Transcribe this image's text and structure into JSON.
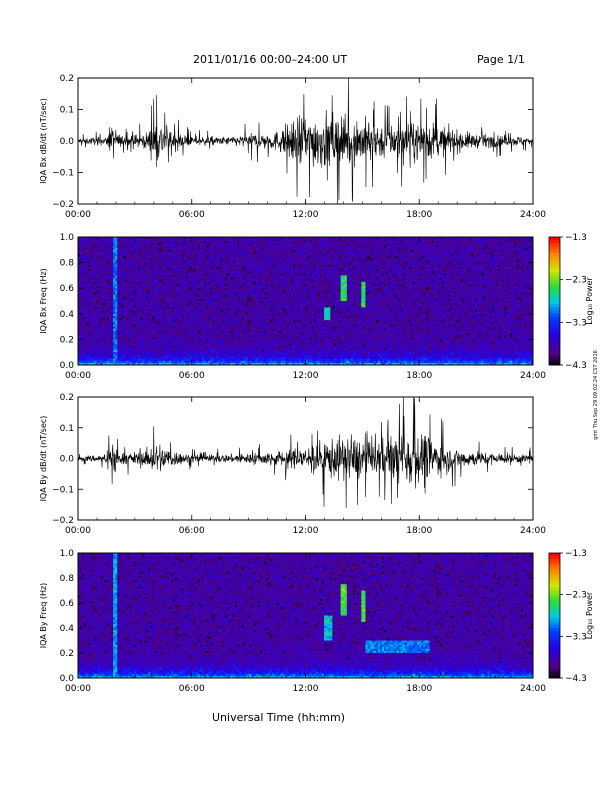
{
  "header": {
    "date_range": "2011/01/16  00:00–24:00 UT",
    "page": "Page 1/1"
  },
  "xaxis_label": "Universal Time (hh:mm)",
  "side_stamp": "gmt Thu Sep 29 09:02:24 CST 2016",
  "colors": {
    "waveform": "#000000",
    "frame": "#000000"
  },
  "chart_data": [
    {
      "type": "line",
      "ylabel": "IQA Bx dB/dt (nT/sec)",
      "x_ticks": [
        "00:00",
        "06:00",
        "12:00",
        "18:00",
        "24:00"
      ],
      "y_ticks": [
        "0.2",
        "0.1",
        "0.0",
        "−0.1",
        "−0.2"
      ],
      "xlim_hours": [
        0,
        24
      ],
      "ylim": [
        -0.2,
        0.2
      ],
      "series": [
        {
          "amplitude_envelope": [
            [
              0,
              0.02
            ],
            [
              1.5,
              0.03
            ],
            [
              1.9,
              0.13
            ],
            [
              2.2,
              0.04
            ],
            [
              3.5,
              0.05
            ],
            [
              4.2,
              0.14
            ],
            [
              4.6,
              0.12
            ],
            [
              5.2,
              0.06
            ],
            [
              6,
              0.03
            ],
            [
              8,
              0.03
            ],
            [
              9,
              0.05
            ],
            [
              10.5,
              0.07
            ],
            [
              11.2,
              0.14
            ],
            [
              12,
              0.18
            ],
            [
              13,
              0.2
            ],
            [
              14,
              0.18
            ],
            [
              15,
              0.17
            ],
            [
              16,
              0.12
            ],
            [
              17,
              0.12
            ],
            [
              18.5,
              0.14
            ],
            [
              19.5,
              0.09
            ],
            [
              21,
              0.05
            ],
            [
              24,
              0.03
            ]
          ]
        }
      ]
    },
    {
      "type": "heatmap",
      "ylabel": "IQA Bx Freq (Hz)",
      "x_ticks": [
        "00:00",
        "06:00",
        "12:00",
        "18:00",
        "24:00"
      ],
      "y_ticks": [
        "1.0",
        "0.8",
        "0.6",
        "0.4",
        "0.2",
        "0.0"
      ],
      "ylim": [
        0,
        1.0
      ],
      "colorbar": {
        "label": "Log₁₀ Power",
        "ticks": [
          "−1.3",
          "−2.3",
          "−3.3",
          "−4.3"
        ],
        "range": [
          -4.3,
          -1.3
        ]
      },
      "features": [
        {
          "time_h": 2.0,
          "freq_hz": [
            0.0,
            1.0
          ],
          "power": -3.0
        },
        {
          "time_h": [
            13.0,
            13.3
          ],
          "freq_hz": [
            0.35,
            0.45
          ],
          "power": -2.7
        },
        {
          "time_h": [
            13.8,
            14.2
          ],
          "freq_hz": [
            0.5,
            0.7
          ],
          "power": -2.5
        },
        {
          "time_h": [
            14.9,
            15.2
          ],
          "freq_hz": [
            0.45,
            0.65
          ],
          "power": -2.5
        }
      ]
    },
    {
      "type": "line",
      "ylabel": "IQA By dB/dt (nT/sec)",
      "x_ticks": [
        "00:00",
        "06:00",
        "12:00",
        "18:00",
        "24:00"
      ],
      "y_ticks": [
        "0.2",
        "0.1",
        "0.0",
        "−0.1",
        "−0.2"
      ],
      "xlim_hours": [
        0,
        24
      ],
      "ylim": [
        -0.2,
        0.2
      ],
      "series": [
        {
          "amplitude_envelope": [
            [
              0,
              0.02
            ],
            [
              1.5,
              0.03
            ],
            [
              1.9,
              0.14
            ],
            [
              2.2,
              0.04
            ],
            [
              3.5,
              0.05
            ],
            [
              4.2,
              0.12
            ],
            [
              5.2,
              0.05
            ],
            [
              6,
              0.03
            ],
            [
              8,
              0.03
            ],
            [
              10,
              0.05
            ],
            [
              11.5,
              0.07
            ],
            [
              12.5,
              0.12
            ],
            [
              13.5,
              0.15
            ],
            [
              14.5,
              0.17
            ],
            [
              15.5,
              0.12
            ],
            [
              16.5,
              0.15
            ],
            [
              17.5,
              0.2
            ],
            [
              18.2,
              0.2
            ],
            [
              19,
              0.12
            ],
            [
              20,
              0.07
            ],
            [
              22,
              0.04
            ],
            [
              24,
              0.03
            ]
          ]
        }
      ]
    },
    {
      "type": "heatmap",
      "ylabel": "IQA By Freq (Hz)",
      "x_ticks": [
        "00:00",
        "06:00",
        "12:00",
        "18:00",
        "24:00"
      ],
      "y_ticks": [
        "1.0",
        "0.8",
        "0.6",
        "0.4",
        "0.2",
        "0.0"
      ],
      "ylim": [
        0,
        1.0
      ],
      "colorbar": {
        "label": "Log₁₀ Power",
        "ticks": [
          "−1.3",
          "−2.3",
          "−3.3",
          "−4.3"
        ],
        "range": [
          -4.3,
          -1.3
        ]
      },
      "features": [
        {
          "time_h": 2.0,
          "freq_hz": [
            0.0,
            1.0
          ],
          "power": -2.9
        },
        {
          "time_h": [
            13.0,
            13.4
          ],
          "freq_hz": [
            0.3,
            0.5
          ],
          "power": -2.8
        },
        {
          "time_h": [
            13.8,
            14.2
          ],
          "freq_hz": [
            0.5,
            0.75
          ],
          "power": -2.4
        },
        {
          "time_h": [
            14.9,
            15.2
          ],
          "freq_hz": [
            0.45,
            0.7
          ],
          "power": -2.4
        },
        {
          "time_h": [
            15.2,
            18.5
          ],
          "freq_hz": [
            0.2,
            0.3
          ],
          "power": -3.0
        }
      ]
    }
  ]
}
